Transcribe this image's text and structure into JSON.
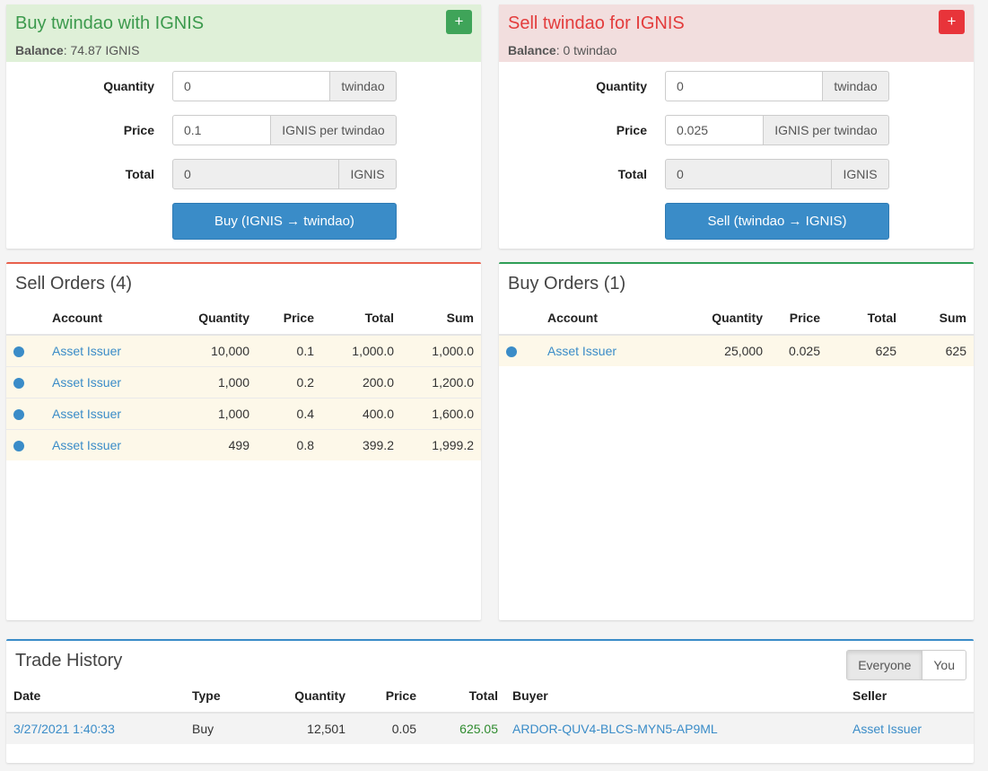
{
  "buy_panel": {
    "title": "Buy twindao with IGNIS",
    "plus": "+",
    "balance_label": "Balance",
    "balance_value": ": 74.87 IGNIS",
    "quantity_label": "Quantity",
    "quantity_value": "0",
    "quantity_unit": "twindao",
    "price_label": "Price",
    "price_value": "0.1",
    "price_unit": "IGNIS per twindao",
    "total_label": "Total",
    "total_value": "0",
    "total_unit": "IGNIS",
    "button": "Buy (IGNIS → twindao)"
  },
  "sell_panel": {
    "title": "Sell twindao for IGNIS",
    "plus": "+",
    "balance_label": "Balance",
    "balance_value": ": 0 twindao",
    "quantity_label": "Quantity",
    "quantity_value": "0",
    "quantity_unit": "twindao",
    "price_label": "Price",
    "price_value": "0.025",
    "price_unit": "IGNIS per twindao",
    "total_label": "Total",
    "total_value": "0",
    "total_unit": "IGNIS",
    "button": "Sell (twindao → IGNIS)"
  },
  "sell_orders": {
    "title": "Sell Orders (4)",
    "columns": [
      "Account",
      "Quantity",
      "Price",
      "Total",
      "Sum"
    ],
    "rows": [
      {
        "account": "Asset Issuer",
        "quantity": "10,000",
        "price": "0.1",
        "total": "1,000.0",
        "sum": "1,000.0"
      },
      {
        "account": "Asset Issuer",
        "quantity": "1,000",
        "price": "0.2",
        "total": "200.0",
        "sum": "1,200.0"
      },
      {
        "account": "Asset Issuer",
        "quantity": "1,000",
        "price": "0.4",
        "total": "400.0",
        "sum": "1,600.0"
      },
      {
        "account": "Asset Issuer",
        "quantity": "499",
        "price": "0.8",
        "total": "399.2",
        "sum": "1,999.2"
      }
    ]
  },
  "buy_orders": {
    "title": "Buy Orders (1)",
    "columns": [
      "Account",
      "Quantity",
      "Price",
      "Total",
      "Sum"
    ],
    "rows": [
      {
        "account": "Asset Issuer",
        "quantity": "25,000",
        "price": "0.025",
        "total": "625",
        "sum": "625"
      }
    ]
  },
  "trade_history": {
    "title": "Trade History",
    "toggle": [
      "Everyone",
      "You"
    ],
    "columns": [
      "Date",
      "Type",
      "Quantity",
      "Price",
      "Total",
      "Buyer",
      "Seller"
    ],
    "rows": [
      {
        "date": "3/27/2021 1:40:33",
        "type": "Buy",
        "quantity": "12,501",
        "price": "0.05",
        "total": "625.05",
        "buyer": "ARDOR-QUV4-BLCS-MYN5-AP9ML",
        "seller": "Asset Issuer"
      }
    ]
  },
  "colors": {
    "accent_blue": "#3a8cc8",
    "buy_green": "#3c9a4d",
    "sell_red": "#e33c3c"
  }
}
